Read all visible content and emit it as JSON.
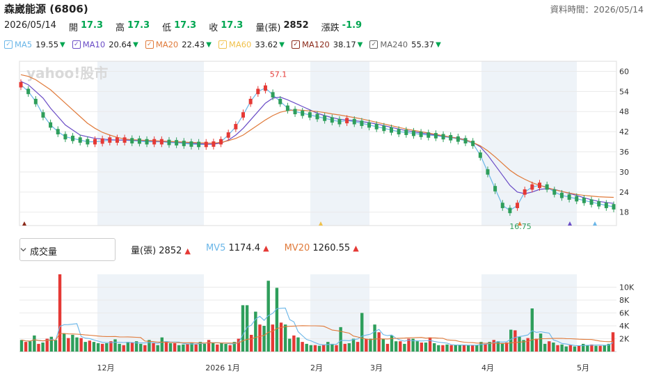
{
  "header": {
    "title": "森崴能源 (6806)",
    "data_time": "資料時間：2026/05/14"
  },
  "quote": {
    "date": "2026/05/14",
    "open_label": "開",
    "open": "17.3",
    "high_label": "高",
    "high": "17.3",
    "low_label": "低",
    "low": "17.3",
    "close_label": "收",
    "close": "17.3",
    "volume_label": "量(張)",
    "volume": "2852",
    "change_label": "漲跌",
    "change": "-1.9"
  },
  "moving_averages": [
    {
      "label": "MA5",
      "value": "19.55",
      "color": "#6ab6e8"
    },
    {
      "label": "MA10",
      "value": "20.64",
      "color": "#6a4cc6"
    },
    {
      "label": "MA20",
      "value": "22.43",
      "color": "#e07a3a"
    },
    {
      "label": "MA60",
      "value": "33.62",
      "color": "#f0c14b"
    },
    {
      "label": "MA120",
      "value": "38.17",
      "color": "#8b2a1a"
    },
    {
      "label": "MA240",
      "value": "55.37",
      "color": "#666666"
    }
  ],
  "volume_panel": {
    "select_value": "成交量",
    "items": [
      {
        "label": "量(張)",
        "value": "2852"
      },
      {
        "label": "MV5",
        "value": "1174.4"
      },
      {
        "label": "MV20",
        "value": "1260.55"
      }
    ]
  },
  "watermark": "yahoo!股市",
  "colors": {
    "up": "#e53935",
    "down": "#2e9e5b",
    "ma5": "#6ab6e8",
    "ma10": "#6a4cc6",
    "ma20": "#e07a3a",
    "shade": "#eef3f8"
  },
  "chart_data": [
    {
      "type": "candlestick",
      "y_ticks": [
        "60",
        "54",
        "48",
        "42",
        "36",
        "30",
        "24",
        "18"
      ],
      "ylim": [
        14,
        63
      ],
      "annotations": [
        "57.1",
        "16.75"
      ],
      "series": [
        {
          "name": "MA5",
          "values": [
            56,
            54,
            51,
            47,
            44,
            42,
            40.5,
            40,
            39.5,
            39,
            39,
            39.2,
            39.5,
            39.5,
            39.5,
            39.3,
            39.2,
            39,
            39,
            39,
            38.8,
            38.7,
            38.5,
            38.3,
            38.2,
            38.2,
            38.3,
            39,
            41,
            43.5,
            47,
            51,
            54,
            55,
            53,
            51,
            49,
            48,
            47.5,
            47,
            46.5,
            46,
            45.5,
            45,
            45.3,
            45,
            44.5,
            44,
            43.5,
            43,
            42.5,
            42,
            41.8,
            41.5,
            41.2,
            41,
            40.8,
            40.5,
            40.2,
            39.8,
            39.3,
            38.5,
            35,
            30,
            25,
            20,
            18.5,
            20,
            24,
            25.5,
            26,
            25.5,
            24,
            23,
            22.5,
            22,
            21.5,
            21,
            20.5,
            20,
            19.6
          ]
        },
        {
          "name": "MA10",
          "values": [
            57,
            56,
            54,
            52,
            49,
            46.5,
            44,
            42.5,
            41,
            40.5,
            40,
            39.8,
            39.6,
            39.5,
            39.5,
            39.5,
            39.4,
            39.3,
            39.2,
            39.1,
            39,
            38.9,
            38.8,
            38.6,
            38.4,
            38.3,
            38.3,
            38.6,
            39.5,
            41,
            43,
            45.5,
            48,
            50.5,
            52,
            52.3,
            51.5,
            50.5,
            49.5,
            48.5,
            47.5,
            46.8,
            46.2,
            45.7,
            45.5,
            45.3,
            45,
            44.7,
            44.3,
            43.8,
            43.3,
            42.8,
            42.3,
            42,
            41.6,
            41.3,
            41,
            40.7,
            40.4,
            40.1,
            39.6,
            38.8,
            37.5,
            35,
            32,
            29,
            26,
            24,
            23.5,
            24,
            24.8,
            25,
            24.8,
            24.2,
            23.6,
            23,
            22.3,
            21.7,
            21.2,
            20.9,
            20.6
          ]
        },
        {
          "name": "MA20",
          "values": [
            59,
            58.5,
            57.5,
            56,
            54.5,
            52.5,
            50.5,
            48.5,
            46.5,
            44.5,
            43,
            41.8,
            41,
            40.3,
            39.8,
            39.6,
            39.5,
            39.4,
            39.3,
            39.2,
            39.1,
            39,
            38.9,
            38.8,
            38.7,
            38.6,
            38.6,
            38.8,
            39.3,
            40,
            41,
            42.5,
            44,
            45.5,
            46.8,
            47.8,
            48.3,
            48.5,
            48.4,
            48.2,
            48,
            47.7,
            47.3,
            47,
            46.6,
            46.2,
            45.8,
            45.3,
            44.8,
            44.3,
            43.8,
            43.3,
            42.8,
            42.4,
            42,
            41.6,
            41.2,
            40.8,
            40.4,
            40,
            39.5,
            38.8,
            37.8,
            36.3,
            34.5,
            32.5,
            30.5,
            29,
            27.8,
            26.8,
            26,
            25.3,
            24.7,
            24.2,
            23.7,
            23.3,
            23,
            22.8,
            22.6,
            22.5,
            22.4
          ]
        }
      ]
    },
    {
      "type": "bar",
      "title": "成交量",
      "y_ticks": [
        "10K",
        "8K",
        "6K",
        "4K",
        "2K"
      ],
      "ylim": [
        0,
        12000
      ],
      "x_ticks": [
        "12月",
        "2026 1月",
        "2月",
        "3月",
        "4月",
        "5月"
      ],
      "values": [
        1800,
        1500,
        1600,
        2500,
        1200,
        1400,
        2000,
        2300,
        1800,
        12000,
        2800,
        2100,
        2600,
        2200,
        2100,
        1500,
        1700,
        1500,
        1300,
        1200,
        1300,
        1600,
        1900,
        1200,
        1000,
        1500,
        1400,
        1600,
        1200,
        1000,
        1800,
        1300,
        1000,
        2200,
        1600,
        1300,
        1300,
        1000,
        1100,
        1200,
        1400,
        1100,
        1500,
        1200,
        1800,
        1300,
        1100,
        1300,
        1200,
        1000,
        1500,
        2000,
        7200,
        7200,
        2600,
        6200,
        4200,
        4000,
        11000,
        4200,
        9900,
        4500,
        4200,
        2000,
        2500,
        2200,
        1500,
        1200,
        1000,
        1000,
        900,
        1100,
        1500,
        1200,
        1000,
        3800,
        1200,
        1300,
        2000,
        1500,
        6000,
        2000,
        2000,
        4200,
        3000,
        2000,
        1200,
        2500,
        1600,
        1600,
        1200,
        2000,
        2000,
        1600,
        1400,
        1400,
        2200,
        1300,
        1000,
        1000,
        1100,
        1000,
        1000,
        1000,
        1000,
        1000,
        1000,
        1000,
        1500,
        1200,
        1500,
        1800,
        1600,
        1300,
        1400,
        3400,
        3300,
        2300,
        1800,
        2100,
        6700,
        2000,
        2800,
        1200,
        1600,
        1400,
        1000,
        1100,
        800,
        1000,
        800,
        900,
        1200,
        1000,
        1100,
        900,
        900,
        1000,
        1200,
        3000
      ],
      "bar_colors": "mixed red/green"
    }
  ]
}
